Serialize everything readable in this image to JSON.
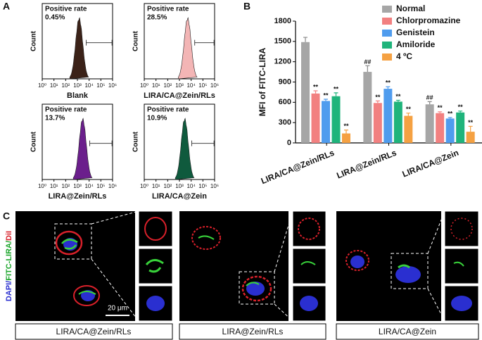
{
  "panel_labels": [
    "A",
    "B",
    "C"
  ],
  "chart_data": [
    {
      "type": "flow",
      "annotation": "Positive rate",
      "rate": "0.45%",
      "xlabel": "Blank",
      "ylabel": "Count",
      "color": "#3b2218",
      "log_x": true,
      "xlim": [
        1,
        1000000
      ],
      "xticks": [
        {
          "value": 1,
          "label": "10⁰"
        },
        {
          "value": 10,
          "label": "10¹"
        },
        {
          "value": 100,
          "label": "10²"
        },
        {
          "value": 1000,
          "label": "10³"
        },
        {
          "value": 10000,
          "label": "10⁴"
        },
        {
          "value": 100000,
          "label": "10⁵"
        },
        {
          "value": 1000000,
          "label": "10⁶"
        }
      ]
    },
    {
      "type": "flow",
      "annotation": "Positive rate",
      "rate": "28.5%",
      "xlabel": "LIRA/CA@Zein/RLs",
      "ylabel": "Count",
      "color": "#f3b5b5",
      "log_x": true,
      "xlim": [
        1,
        1000000
      ],
      "xticks": [
        {
          "value": 1,
          "label": "10⁰"
        },
        {
          "value": 10,
          "label": "10¹"
        },
        {
          "value": 100,
          "label": "10²"
        },
        {
          "value": 1000,
          "label": "10³"
        },
        {
          "value": 10000,
          "label": "10⁴"
        },
        {
          "value": 100000,
          "label": "10⁵"
        },
        {
          "value": 1000000,
          "label": "10⁶"
        }
      ]
    },
    {
      "type": "flow",
      "annotation": "Positive rate",
      "rate": "13.7%",
      "xlabel": "LIRA@Zein/RLs",
      "ylabel": "Count",
      "color": "#6b1f8c",
      "log_x": true,
      "xlim": [
        1,
        1000000
      ],
      "xticks": [
        {
          "value": 1,
          "label": "10⁰"
        },
        {
          "value": 10,
          "label": "10¹"
        },
        {
          "value": 100,
          "label": "10²"
        },
        {
          "value": 1000,
          "label": "10³"
        },
        {
          "value": 10000,
          "label": "10⁴"
        },
        {
          "value": 100000,
          "label": "10⁵"
        },
        {
          "value": 1000000,
          "label": "10⁶"
        }
      ]
    },
    {
      "type": "flow",
      "annotation": "Positive rate",
      "rate": "10.9%",
      "xlabel": "LIRA/CA@Zein",
      "ylabel": "Count",
      "color": "#0f5a3d",
      "log_x": true,
      "xlim": [
        1,
        1000000
      ],
      "xticks": [
        {
          "value": 1,
          "label": "10⁰"
        },
        {
          "value": 10,
          "label": "10¹"
        },
        {
          "value": 100,
          "label": "10²"
        },
        {
          "value": 1000,
          "label": "10³"
        },
        {
          "value": 10000,
          "label": "10⁴"
        },
        {
          "value": 100000,
          "label": "10⁵"
        },
        {
          "value": 1000000,
          "label": "10⁶"
        }
      ]
    },
    {
      "type": "bar",
      "ylabel": "MFI of FITC-LIRA",
      "categories": [
        "LIRA/CA@Zein/RLs",
        "LIRA@Zein/RLs",
        "LIRA/CA@Zein"
      ],
      "ylim": [
        0,
        1800
      ],
      "yticks": [
        0,
        300,
        600,
        900,
        1200,
        1500,
        1800
      ],
      "legend": "top-right",
      "series": [
        {
          "name": "Normal",
          "color": "#a6a6a6",
          "values": [
            1490,
            1050,
            570
          ],
          "errors": [
            70,
            90,
            40
          ],
          "significance": [
            null,
            "##",
            "##"
          ]
        },
        {
          "name": "Chlorpromazine",
          "color": "#f28080",
          "values": [
            730,
            590,
            440
          ],
          "errors": [
            40,
            30,
            20
          ],
          "significance": [
            "**",
            "**",
            "**"
          ]
        },
        {
          "name": "Genistein",
          "color": "#4f9cee",
          "values": [
            620,
            800,
            360
          ],
          "errors": [
            25,
            30,
            15
          ],
          "significance": [
            "**",
            "**",
            "**"
          ]
        },
        {
          "name": "Amiloride",
          "color": "#1fb47b",
          "values": [
            690,
            610,
            450
          ],
          "errors": [
            50,
            20,
            20
          ],
          "significance": [
            "**",
            "**",
            "**"
          ]
        },
        {
          "name": "4 ºC",
          "color": "#f5a142",
          "values": [
            140,
            400,
            165
          ],
          "errors": [
            50,
            40,
            80
          ],
          "significance": [
            "**",
            "**",
            "**"
          ]
        }
      ]
    }
  ],
  "microscopy": {
    "channel_labels": [
      "DAPI/",
      "FITC-LIRA/",
      "DiI"
    ],
    "scale_bar": "20 μm",
    "captions": [
      "LIRA/CA@Zein/RLs",
      "LIRA@Zein/RLs",
      "LIRA/CA@Zein"
    ]
  }
}
